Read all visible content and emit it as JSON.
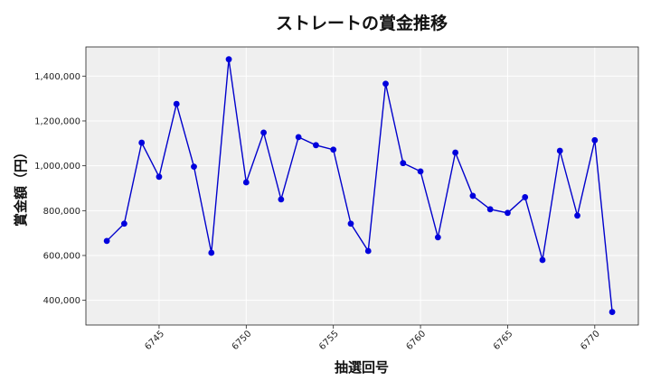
{
  "chart_data": {
    "type": "line",
    "title": "ストレートの賞金推移",
    "xlabel": "抽選回号",
    "ylabel": "賞金額（円）",
    "x": [
      6742,
      6743,
      6744,
      6745,
      6746,
      6747,
      6748,
      6749,
      6750,
      6751,
      6752,
      6753,
      6754,
      6755,
      6756,
      6757,
      6758,
      6759,
      6760,
      6761,
      6762,
      6763,
      6764,
      6765,
      6766,
      6767,
      6768,
      6769,
      6770,
      6771
    ],
    "series": [
      {
        "values": [
          665000,
          742000,
          1103000,
          951000,
          1276000,
          996000,
          612000,
          1475000,
          926000,
          1148000,
          850000,
          1128000,
          1092000,
          1072000,
          742000,
          620000,
          1366000,
          1012000,
          975000,
          681000,
          1059000,
          866000,
          806000,
          790000,
          860000,
          580000,
          1067000,
          778000,
          1114000,
          348000
        ]
      }
    ],
    "xlim": [
      6740.8,
      6772.5
    ],
    "ylim": [
      290000,
      1530000
    ],
    "xticks": [
      6745,
      6750,
      6755,
      6760,
      6765,
      6770
    ],
    "xtick_labels": [
      "6745",
      "6750",
      "6755",
      "6760",
      "6765",
      "6770"
    ],
    "yticks": [
      400000,
      600000,
      800000,
      1000000,
      1200000,
      1400000
    ],
    "ytick_labels": [
      "400,000",
      "600,000",
      "800,000",
      "1,000,000",
      "1,200,000",
      "1,400,000"
    ],
    "grid": true,
    "colors": {
      "line": "#0000cc",
      "marker": "#0000dd",
      "plot_bg": "#efefef",
      "grid": "#ffffff"
    }
  }
}
